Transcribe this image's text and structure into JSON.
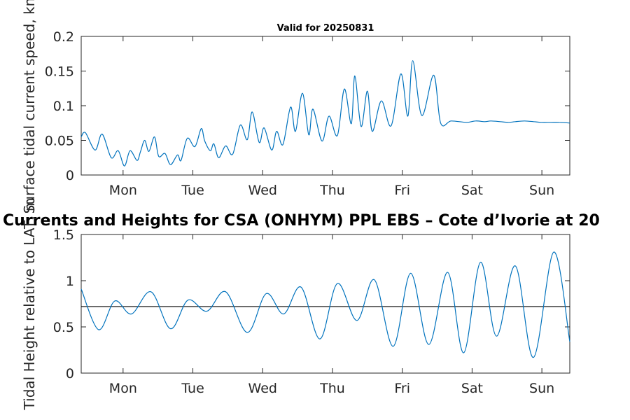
{
  "chart_data": [
    {
      "type": "line",
      "title": "Valid for 20250831",
      "xlabel": "",
      "ylabel": "Surface tidal current speed, kn",
      "x_tick_labels": [
        "Mon",
        "Tue",
        "Wed",
        "Thu",
        "Fri",
        "Sat",
        "Sun"
      ],
      "y_tick_labels": [
        "0",
        "0.05",
        "0.1",
        "0.15",
        "0.2"
      ],
      "ylim": [
        0,
        0.2
      ],
      "xlim_days": [
        -0.6,
        6.4
      ],
      "grid": false,
      "series": [
        {
          "color": "#0072bd",
          "x_days": [
            -0.6,
            -0.54,
            -0.4,
            -0.3,
            -0.17,
            -0.07,
            0.02,
            0.1,
            0.2,
            0.25,
            0.31,
            0.37,
            0.45,
            0.51,
            0.6,
            0.68,
            0.78,
            0.83,
            0.92,
            1.03,
            1.12,
            1.17,
            1.25,
            1.3,
            1.37,
            1.47,
            1.57,
            1.68,
            1.78,
            1.85,
            1.95,
            2.02,
            2.13,
            2.2,
            2.29,
            2.4,
            2.47,
            2.57,
            2.66,
            2.72,
            2.85,
            2.95,
            3.07,
            3.17,
            3.27,
            3.32,
            3.41,
            3.5,
            3.57,
            3.7,
            3.84,
            3.98,
            4.08,
            4.15,
            4.28,
            4.45,
            4.55,
            4.7,
            4.92,
            5.05,
            5.18,
            5.27,
            5.4,
            5.52,
            5.62,
            5.75,
            5.88,
            5.99,
            6.13,
            6.25,
            6.4
          ],
          "values": [
            0.055,
            0.061,
            0.036,
            0.059,
            0.025,
            0.035,
            0.013,
            0.035,
            0.021,
            0.034,
            0.05,
            0.034,
            0.055,
            0.027,
            0.031,
            0.015,
            0.029,
            0.021,
            0.053,
            0.041,
            0.067,
            0.049,
            0.035,
            0.045,
            0.025,
            0.042,
            0.03,
            0.072,
            0.051,
            0.091,
            0.047,
            0.068,
            0.036,
            0.063,
            0.044,
            0.098,
            0.063,
            0.118,
            0.058,
            0.095,
            0.049,
            0.085,
            0.057,
            0.124,
            0.074,
            0.143,
            0.07,
            0.121,
            0.063,
            0.107,
            0.071,
            0.146,
            0.085,
            0.165,
            0.086,
            0.144,
            0.075,
            0.078,
            0.076,
            0.078,
            0.077,
            0.078,
            0.077,
            0.076,
            0.077,
            0.078,
            0.077,
            0.076,
            0.076,
            0.076,
            0.075
          ]
        }
      ]
    },
    {
      "type": "line",
      "title": "Currents and Heights for CSA (ONHYM) PPL EBS  – Cote d’Ivorie at 20",
      "xlabel": "",
      "ylabel": "Tidal Height relative to LAT, m",
      "x_tick_labels": [
        "Mon",
        "Tue",
        "Wed",
        "Thu",
        "Fri",
        "Sat",
        "Sun"
      ],
      "y_tick_labels": [
        "0",
        "0.5",
        "1",
        "1.5"
      ],
      "ylim": [
        0,
        1.5
      ],
      "xlim_days": [
        -0.6,
        6.4
      ],
      "grid": false,
      "reference_line": 0.72,
      "series": [
        {
          "color": "#0072bd",
          "x_days": [
            -0.6,
            -0.35,
            -0.12,
            0.12,
            0.4,
            0.68,
            0.93,
            1.2,
            1.47,
            1.78,
            2.05,
            2.3,
            2.55,
            2.82,
            3.07,
            3.35,
            3.6,
            3.87,
            4.12,
            4.38,
            4.65,
            4.88,
            5.12,
            5.35,
            5.62,
            5.88,
            6.17,
            6.4
          ],
          "values": [
            0.91,
            0.47,
            0.78,
            0.64,
            0.88,
            0.48,
            0.79,
            0.67,
            0.88,
            0.44,
            0.86,
            0.64,
            0.93,
            0.37,
            0.97,
            0.57,
            1.01,
            0.29,
            1.08,
            0.31,
            1.09,
            0.22,
            1.2,
            0.4,
            1.16,
            0.17,
            1.31,
            0.34
          ]
        }
      ]
    }
  ]
}
